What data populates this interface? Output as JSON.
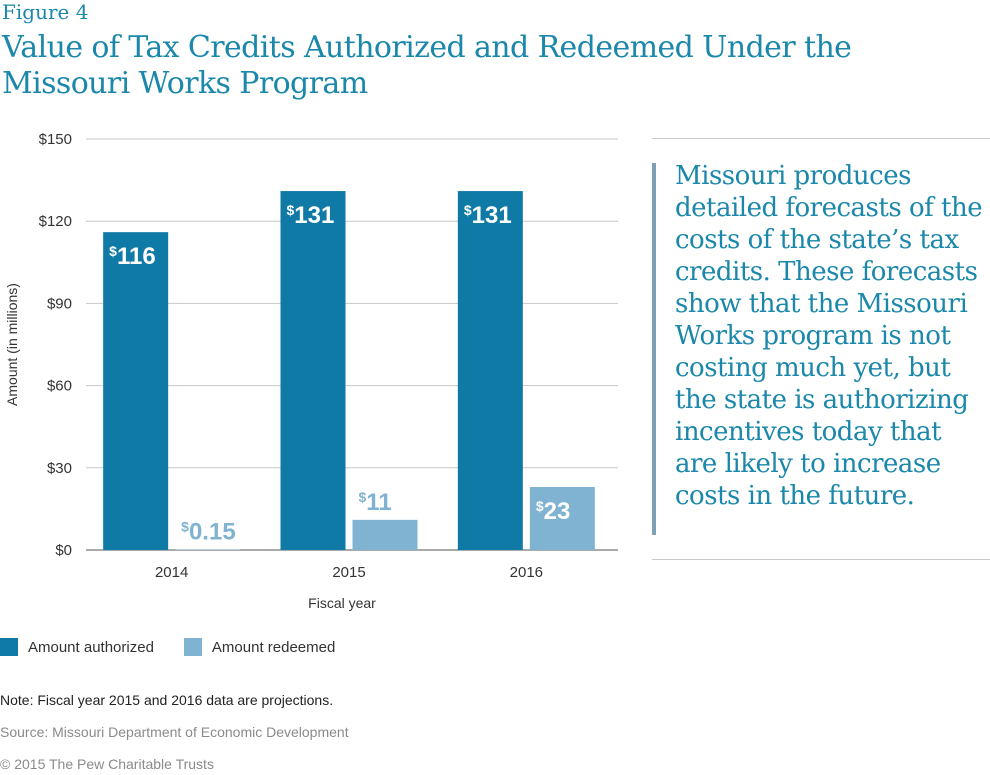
{
  "figure_label": "Figure 4",
  "title": "Value of Tax Credits Authorized and Redeemed Under the Missouri Works Program",
  "sidebar_text": "Missouri produces detailed forecasts of the costs of the state’s tax credits. These forecasts show that the Missouri Works program is not costing much yet, but the state is authorizing incentives today that are likely to increase costs in the future.",
  "note": "Note: Fiscal year 2015 and 2016 data are projections.",
  "source": "Source: Missouri Department of Economic Development",
  "copyright": "© 2015 The Pew Charitable Trusts",
  "colors": {
    "authorized": "#0f7aa6",
    "redeemed": "#7fb3d1",
    "title": "#1a87ab"
  },
  "chart_data": {
    "type": "bar",
    "categories": [
      "2014",
      "2015",
      "2016"
    ],
    "series": [
      {
        "name": "Amount authorized",
        "values": [
          116,
          131,
          131
        ],
        "labels": [
          "116",
          "131",
          "131"
        ]
      },
      {
        "name": "Amount redeemed",
        "values": [
          0.15,
          11,
          23
        ],
        "labels": [
          "0.15",
          "11",
          "23"
        ]
      }
    ],
    "currency_symbol": "$",
    "xlabel": "Fiscal year",
    "ylabel": "Amount (in millions)",
    "ylim": [
      0,
      150
    ],
    "yticks": [
      0,
      30,
      60,
      90,
      120,
      150
    ],
    "ytick_labels": [
      "$0",
      "$30",
      "$60",
      "$90",
      "$120",
      "$150"
    ],
    "grid": true,
    "legend_position": "bottom-left"
  }
}
